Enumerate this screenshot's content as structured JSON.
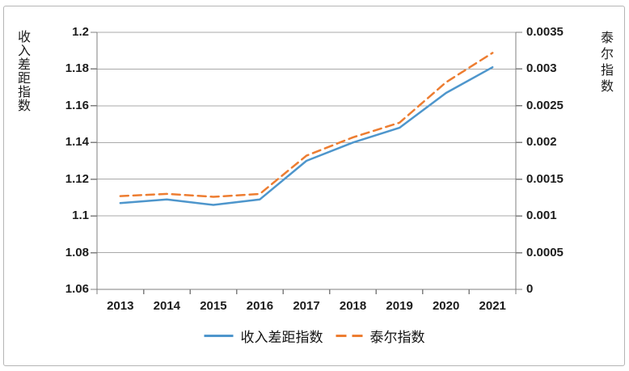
{
  "chart_data": {
    "type": "line",
    "categories": [
      "2013",
      "2014",
      "2015",
      "2016",
      "2017",
      "2018",
      "2019",
      "2020",
      "2021"
    ],
    "series": [
      {
        "name": "收入差距指数",
        "axis": "left",
        "style": "solid",
        "color": "#4E96CC",
        "values": [
          1.107,
          1.109,
          1.106,
          1.109,
          1.13,
          1.14,
          1.148,
          1.167,
          1.181
        ]
      },
      {
        "name": "泰尔指数",
        "axis": "right",
        "style": "dashed",
        "color": "#ED7D31",
        "values": [
          0.00127,
          0.0013,
          0.00126,
          0.0013,
          0.00182,
          0.00207,
          0.00227,
          0.00282,
          0.00322
        ]
      }
    ],
    "left_axis": {
      "label": "收入差距指数",
      "min": 1.06,
      "max": 1.2,
      "ticks": [
        "1.2",
        "1.18",
        "1.16",
        "1.14",
        "1.12",
        "1.1",
        "1.08",
        "1.06"
      ]
    },
    "right_axis": {
      "label": "泰尔指数",
      "min": 0,
      "max": 0.0035,
      "ticks": [
        "0.0035",
        "0.003",
        "0.0025",
        "0.002",
        "0.0015",
        "0.001",
        "0.0005",
        "0"
      ]
    },
    "grid": true,
    "grid_color": "#a9a9a9",
    "axis_color": "#7f7f7f",
    "legend_position": "bottom"
  },
  "legend": {
    "items": [
      {
        "label": "收入差距指数",
        "swatch": "solid-line"
      },
      {
        "label": "泰尔指数",
        "swatch": "dashed-line"
      }
    ]
  }
}
